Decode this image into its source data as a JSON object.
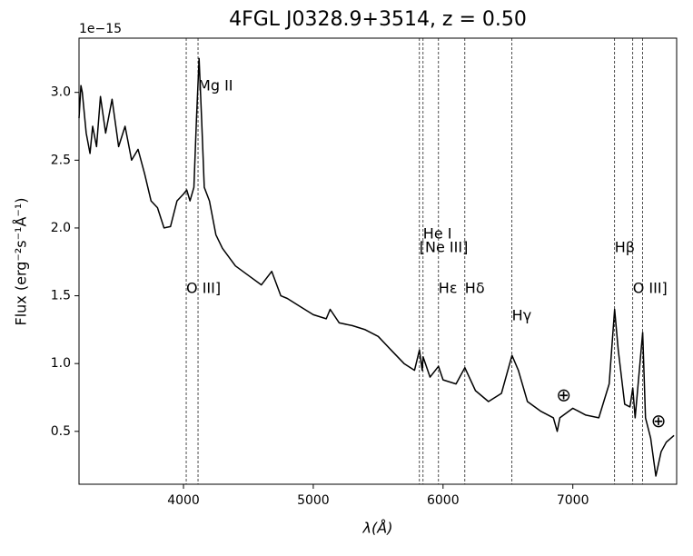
{
  "chart_data": {
    "type": "line",
    "title": "4FGL J0328.9+3514, z = 0.50",
    "x_label": "λ(Å)",
    "y_label": "Flux (erg⁻²s⁻¹Å⁻¹)",
    "y_offset_label": "1e−15",
    "xlim": [
      3195,
      7800
    ],
    "ylim": [
      0.11,
      3.4
    ],
    "xticks": [
      4000,
      5000,
      6000,
      7000
    ],
    "yticks": [
      0.5,
      {
        "value": 1,
        "label": "1.0"
      },
      1.5,
      {
        "value": 2,
        "label": "2.0"
      },
      2.5,
      {
        "value": 3,
        "label": "3.0"
      }
    ],
    "series": [
      {
        "color": "#000000",
        "x": [
          3195,
          3210,
          3220,
          3250,
          3280,
          3300,
          3330,
          3360,
          3400,
          3450,
          3500,
          3550,
          3600,
          3650,
          3700,
          3750,
          3800,
          3850,
          3900,
          3950,
          4000,
          4025,
          4050,
          4080,
          4100,
          4120,
          4140,
          4160,
          4200,
          4250,
          4300,
          4400,
          4500,
          4600,
          4680,
          4750,
          4800,
          4900,
          5000,
          5100,
          5130,
          5200,
          5300,
          5400,
          5500,
          5600,
          5700,
          5780,
          5818,
          5840,
          5846,
          5900,
          5965,
          6000,
          6100,
          6168,
          6250,
          6350,
          6450,
          6531,
          6580,
          6650,
          6750,
          6850,
          6880,
          6900,
          7000,
          7100,
          7200,
          7280,
          7322,
          7350,
          7400,
          7440,
          7462,
          7480,
          7538,
          7560,
          7600,
          7640,
          7680,
          7720,
          7780
        ],
        "values": [
          2.81,
          3.05,
          3.0,
          2.7,
          2.55,
          2.75,
          2.6,
          2.97,
          2.7,
          2.95,
          2.6,
          2.75,
          2.5,
          2.58,
          2.4,
          2.2,
          2.15,
          2.0,
          2.01,
          2.2,
          2.25,
          2.28,
          2.2,
          2.3,
          2.8,
          3.25,
          2.8,
          2.3,
          2.2,
          1.95,
          1.85,
          1.72,
          1.65,
          1.58,
          1.68,
          1.5,
          1.48,
          1.42,
          1.36,
          1.33,
          1.4,
          1.3,
          1.28,
          1.25,
          1.2,
          1.1,
          1.0,
          0.95,
          1.1,
          0.95,
          1.05,
          0.9,
          0.98,
          0.88,
          0.85,
          0.97,
          0.8,
          0.72,
          0.78,
          1.06,
          0.95,
          0.72,
          0.65,
          0.6,
          0.5,
          0.6,
          0.67,
          0.62,
          0.6,
          0.85,
          1.4,
          1.1,
          0.7,
          0.68,
          0.82,
          0.6,
          1.23,
          0.6,
          0.45,
          0.17,
          0.35,
          0.42,
          0.47
        ]
      }
    ],
    "lines": [
      {
        "x": 4021,
        "label": "O III]"
      },
      {
        "x": 4112,
        "label": "Mg II"
      },
      {
        "x": 5818,
        "label": "[Ne III]"
      },
      {
        "x": 5846,
        "label": "He I"
      },
      {
        "x": 5965,
        "label": "Hε"
      },
      {
        "x": 6168,
        "label": "Hδ"
      },
      {
        "x": 6531,
        "label": "Hγ"
      },
      {
        "x": 7322,
        "label": "Hβ"
      },
      {
        "x": 7462,
        "label": "O III]"
      },
      {
        "x": 7538
      }
    ],
    "annotations": [
      {
        "text": "⊕",
        "x": 6930,
        "y": 0.76
      },
      {
        "text": "⊕",
        "x": 7660,
        "y": 0.57
      }
    ]
  }
}
